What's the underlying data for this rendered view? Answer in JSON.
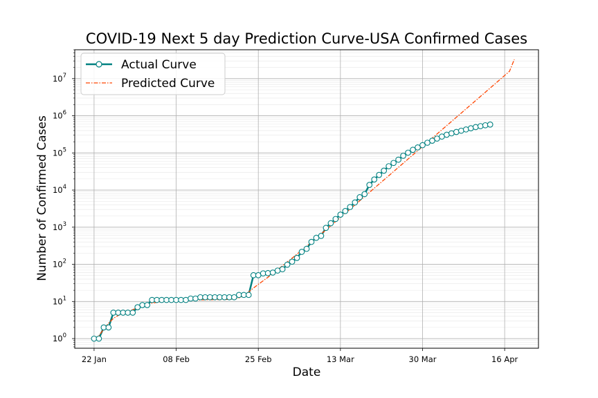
{
  "chart_data": {
    "type": "line",
    "title": "COVID-19 Next 5 day Prediction Curve-USA Confirmed Cases",
    "xlabel": "Date",
    "ylabel": "Number of Confirmed Cases",
    "y_scale": "log",
    "ylim": [
      0.55,
      60000000
    ],
    "xlim": [
      "2020-01-18",
      "2020-04-23"
    ],
    "x_ticks": [
      {
        "date": "2020-01-22",
        "label": "22 Jan"
      },
      {
        "date": "2020-02-08",
        "label": "08 Feb"
      },
      {
        "date": "2020-02-25",
        "label": "25 Feb"
      },
      {
        "date": "2020-03-13",
        "label": "13 Mar"
      },
      {
        "date": "2020-03-30",
        "label": "30 Mar"
      },
      {
        "date": "2020-04-16",
        "label": "16 Apr"
      }
    ],
    "y_ticks": [
      {
        "value": 1,
        "base": "10",
        "exp": "0"
      },
      {
        "value": 10,
        "base": "10",
        "exp": "1"
      },
      {
        "value": 100,
        "base": "10",
        "exp": "2"
      },
      {
        "value": 1000,
        "base": "10",
        "exp": "3"
      },
      {
        "value": 10000,
        "base": "10",
        "exp": "4"
      },
      {
        "value": 100000,
        "base": "10",
        "exp": "5"
      },
      {
        "value": 1000000,
        "base": "10",
        "exp": "6"
      },
      {
        "value": 10000000,
        "base": "10",
        "exp": "7"
      }
    ],
    "grid": true,
    "legend_position": "top-left",
    "series": [
      {
        "name": "Actual Curve",
        "style": "line-with-markers",
        "color": "#008080",
        "x": [
          "2020-01-22",
          "2020-01-23",
          "2020-01-24",
          "2020-01-25",
          "2020-01-26",
          "2020-01-27",
          "2020-01-28",
          "2020-01-29",
          "2020-01-30",
          "2020-01-31",
          "2020-02-01",
          "2020-02-02",
          "2020-02-03",
          "2020-02-04",
          "2020-02-05",
          "2020-02-06",
          "2020-02-07",
          "2020-02-08",
          "2020-02-09",
          "2020-02-10",
          "2020-02-11",
          "2020-02-12",
          "2020-02-13",
          "2020-02-14",
          "2020-02-15",
          "2020-02-16",
          "2020-02-17",
          "2020-02-18",
          "2020-02-19",
          "2020-02-20",
          "2020-02-21",
          "2020-02-22",
          "2020-02-23",
          "2020-02-24",
          "2020-02-25",
          "2020-02-26",
          "2020-02-27",
          "2020-02-28",
          "2020-02-29",
          "2020-03-01",
          "2020-03-02",
          "2020-03-03",
          "2020-03-04",
          "2020-03-05",
          "2020-03-06",
          "2020-03-07",
          "2020-03-08",
          "2020-03-09",
          "2020-03-10",
          "2020-03-11",
          "2020-03-12",
          "2020-03-13",
          "2020-03-14",
          "2020-03-15",
          "2020-03-16",
          "2020-03-17",
          "2020-03-18",
          "2020-03-19",
          "2020-03-20",
          "2020-03-21",
          "2020-03-22",
          "2020-03-23",
          "2020-03-24",
          "2020-03-25",
          "2020-03-26",
          "2020-03-27",
          "2020-03-28",
          "2020-03-29",
          "2020-03-30",
          "2020-03-31",
          "2020-04-01",
          "2020-04-02",
          "2020-04-03",
          "2020-04-04",
          "2020-04-05",
          "2020-04-06",
          "2020-04-07",
          "2020-04-08",
          "2020-04-09",
          "2020-04-10",
          "2020-04-11",
          "2020-04-12",
          "2020-04-13"
        ],
        "values": [
          1,
          1,
          2,
          2,
          5,
          5,
          5,
          5,
          5,
          7,
          8,
          8,
          11,
          11,
          11,
          11,
          11,
          11,
          11,
          11,
          12,
          12,
          13,
          13,
          13,
          13,
          13,
          13,
          13,
          13,
          15,
          15,
          15,
          51,
          51,
          57,
          58,
          60,
          68,
          74,
          98,
          118,
          149,
          217,
          262,
          402,
          518,
          583,
          959,
          1281,
          1663,
          2179,
          2727,
          3499,
          4632,
          6421,
          7783,
          13747,
          19273,
          25600,
          33276,
          43847,
          53740,
          65778,
          83836,
          101657,
          121478,
          140886,
          161807,
          188172,
          213372,
          243453,
          275586,
          308853,
          337072,
          366667,
          396223,
          429052,
          461437,
          496535,
          526396,
          555313,
          580619
        ]
      },
      {
        "name": "Predicted Curve",
        "style": "dash-dot",
        "color": "#ff4500",
        "x": [
          "2020-01-22",
          "2020-01-23",
          "2020-01-24",
          "2020-01-25",
          "2020-01-26",
          "2020-01-27",
          "2020-01-28",
          "2020-01-29",
          "2020-01-30",
          "2020-01-31",
          "2020-02-01",
          "2020-02-02",
          "2020-02-03",
          "2020-02-04",
          "2020-02-05",
          "2020-02-06",
          "2020-02-07",
          "2020-02-08",
          "2020-02-09",
          "2020-02-10",
          "2020-02-11",
          "2020-02-12",
          "2020-02-13",
          "2020-02-14",
          "2020-02-15",
          "2020-02-16",
          "2020-02-17",
          "2020-02-18",
          "2020-02-19",
          "2020-02-20",
          "2020-02-21",
          "2020-02-22",
          "2020-02-23",
          "2020-02-24",
          "2020-02-25",
          "2020-02-26",
          "2020-02-27",
          "2020-02-28",
          "2020-02-29",
          "2020-03-01",
          "2020-03-02",
          "2020-03-03",
          "2020-03-04",
          "2020-03-05",
          "2020-03-06",
          "2020-03-07",
          "2020-03-08",
          "2020-03-09",
          "2020-03-10",
          "2020-03-11",
          "2020-03-12",
          "2020-03-13",
          "2020-03-14",
          "2020-03-15",
          "2020-03-16",
          "2020-03-17",
          "2020-03-18",
          "2020-03-19",
          "2020-03-20",
          "2020-03-21",
          "2020-03-22",
          "2020-03-23",
          "2020-03-24",
          "2020-03-25",
          "2020-03-26",
          "2020-03-27",
          "2020-03-28",
          "2020-03-29",
          "2020-03-30",
          "2020-03-31",
          "2020-04-01",
          "2020-04-02",
          "2020-04-03",
          "2020-04-04",
          "2020-04-05",
          "2020-04-06",
          "2020-04-07",
          "2020-04-08",
          "2020-04-09",
          "2020-04-10",
          "2020-04-11",
          "2020-04-12",
          "2020-04-13",
          "2020-04-14",
          "2020-04-15",
          "2020-04-16",
          "2020-04-17",
          "2020-04-18"
        ],
        "values": [
          1,
          1.2,
          1.8,
          2.6,
          3.5,
          4.2,
          4.8,
          5.3,
          6,
          6.8,
          7.6,
          8.3,
          9,
          9.5,
          9.9,
          10.2,
          10.4,
          10.6,
          10.7,
          10.8,
          10.9,
          11,
          11,
          11.1,
          11.1,
          11.2,
          11.2,
          11.3,
          11.4,
          11.6,
          12.5,
          14.5,
          18,
          23,
          29,
          36,
          45,
          57,
          72,
          91,
          116,
          147,
          188,
          240,
          308,
          397,
          512,
          660,
          852,
          1100,
          1420,
          1840,
          2380,
          3080,
          3990,
          5160,
          6680,
          8650,
          11200,
          14500,
          18800,
          24300,
          31500,
          40800,
          52800,
          68400,
          88600,
          115000,
          149000,
          193000,
          250000,
          324000,
          420000,
          544000,
          705000,
          913000,
          1180000,
          1530000,
          1980000,
          2570000,
          3330000,
          4310000,
          5590000,
          7240000,
          9380000,
          12200000,
          15800000,
          33000000
        ]
      }
    ]
  }
}
